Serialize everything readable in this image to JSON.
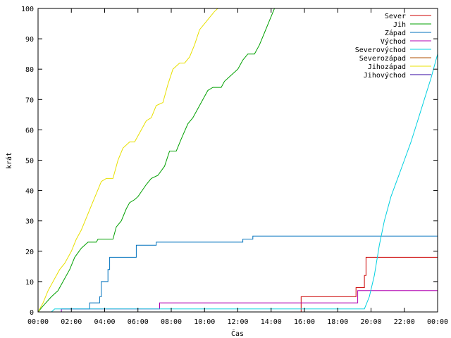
{
  "chart_data": {
    "type": "line",
    "title": "",
    "xlabel": "Čas",
    "ylabel": "krát",
    "xlim": [
      0,
      24
    ],
    "ylim": [
      0,
      100
    ],
    "x_ticks": [
      0,
      2,
      4,
      6,
      8,
      10,
      12,
      14,
      16,
      18,
      20,
      22,
      24
    ],
    "x_tick_labels": [
      "00:00",
      "02:00",
      "04:00",
      "06:00",
      "08:00",
      "10:00",
      "12:00",
      "14:00",
      "16:00",
      "18:00",
      "20:00",
      "22:00",
      "00:00"
    ],
    "y_ticks": [
      0,
      10,
      20,
      30,
      40,
      50,
      60,
      70,
      80,
      90,
      100
    ],
    "y_tick_labels": [
      "0",
      "10",
      "20",
      "30",
      "40",
      "50",
      "60",
      "70",
      "80",
      "90",
      "100"
    ],
    "grid": false,
    "legend_position": "top-right",
    "series": [
      {
        "name": "Sever",
        "color": "#cc0000",
        "step": true,
        "x": [
          0,
          15.7,
          15.8,
          19.0,
          19.1,
          19.6,
          19.7,
          24
        ],
        "y": [
          0,
          0,
          5,
          5,
          8,
          12,
          18,
          18
        ]
      },
      {
        "name": "Jih",
        "color": "#00a000",
        "step": false,
        "x": [
          0,
          0.3,
          0.8,
          1.2,
          1.5,
          1.9,
          2.2,
          2.6,
          3.0,
          3.5,
          3.6,
          4.5,
          4.7,
          5.0,
          5.3,
          5.5,
          5.8,
          6.0,
          6.5,
          6.8,
          7.2,
          7.6,
          7.9,
          8.3,
          8.6,
          9.0,
          9.3,
          9.6,
          9.9,
          10.2,
          10.5,
          11.0,
          11.2,
          11.6,
          12.0,
          12.3,
          12.6,
          13.0,
          13.3,
          13.6,
          13.9,
          14.2
        ],
        "y": [
          0,
          2,
          5,
          7,
          10,
          14,
          18,
          21,
          23,
          23,
          24,
          24,
          28,
          30,
          34,
          36,
          37,
          38,
          42,
          44,
          45,
          48,
          53,
          53,
          57,
          62,
          64,
          67,
          70,
          73,
          74,
          74,
          76,
          78,
          80,
          83,
          85,
          85,
          88,
          92,
          96,
          100
        ]
      },
      {
        "name": "Západ",
        "color": "#0072bd",
        "step": true,
        "x": [
          0,
          1.3,
          1.4,
          3.0,
          3.1,
          3.7,
          3.8,
          4.2,
          4.3,
          5.8,
          5.9,
          7.0,
          7.1,
          12.2,
          12.3,
          12.8,
          12.9,
          24
        ],
        "y": [
          0,
          0,
          1,
          1,
          3,
          5,
          10,
          14,
          18,
          18,
          22,
          22,
          23,
          23,
          24,
          24,
          25,
          25
        ]
      },
      {
        "name": "Východ",
        "color": "#b000b0",
        "step": true,
        "x": [
          0,
          1.3,
          1.4,
          7.2,
          7.3,
          19.1,
          19.2,
          24
        ],
        "y": [
          0,
          0,
          1,
          1,
          3,
          3,
          7,
          7
        ]
      },
      {
        "name": "Severovýchod",
        "color": "#00d0e0",
        "step": false,
        "x": [
          0,
          0.8,
          1.0,
          19.6,
          19.9,
          20.2,
          20.5,
          20.8,
          21.2,
          21.6,
          22.0,
          22.4,
          22.8,
          23.2,
          23.6,
          24.0
        ],
        "y": [
          0,
          0,
          1,
          1,
          5,
          12,
          22,
          30,
          38,
          44,
          50,
          56,
          63,
          70,
          77,
          85
        ]
      },
      {
        "name": "Severozápad",
        "color": "#b05000",
        "step": true,
        "x": [
          0,
          24
        ],
        "y": [
          0,
          0
        ]
      },
      {
        "name": "Jihozápad",
        "color": "#e8e000",
        "step": false,
        "x": [
          0,
          0.3,
          0.6,
          1.0,
          1.3,
          1.6,
          2.0,
          2.3,
          2.6,
          2.9,
          3.2,
          3.5,
          3.8,
          4.1,
          4.5,
          4.8,
          5.1,
          5.5,
          5.8,
          6.2,
          6.5,
          6.8,
          7.1,
          7.5,
          7.8,
          8.1,
          8.5,
          8.8,
          9.1,
          9.4,
          9.7,
          10.0,
          10.3,
          10.6,
          10.8
        ],
        "y": [
          0,
          3,
          7,
          11,
          14,
          16,
          20,
          24,
          27,
          31,
          35,
          39,
          43,
          44,
          44,
          50,
          54,
          56,
          56,
          60,
          63,
          64,
          68,
          69,
          75,
          80,
          82,
          82,
          84,
          88,
          93,
          95,
          97,
          99,
          100
        ]
      },
      {
        "name": "Jihovýchod",
        "color": "#3000a0",
        "step": true,
        "x": [
          0,
          24
        ],
        "y": [
          0,
          0
        ]
      }
    ]
  }
}
